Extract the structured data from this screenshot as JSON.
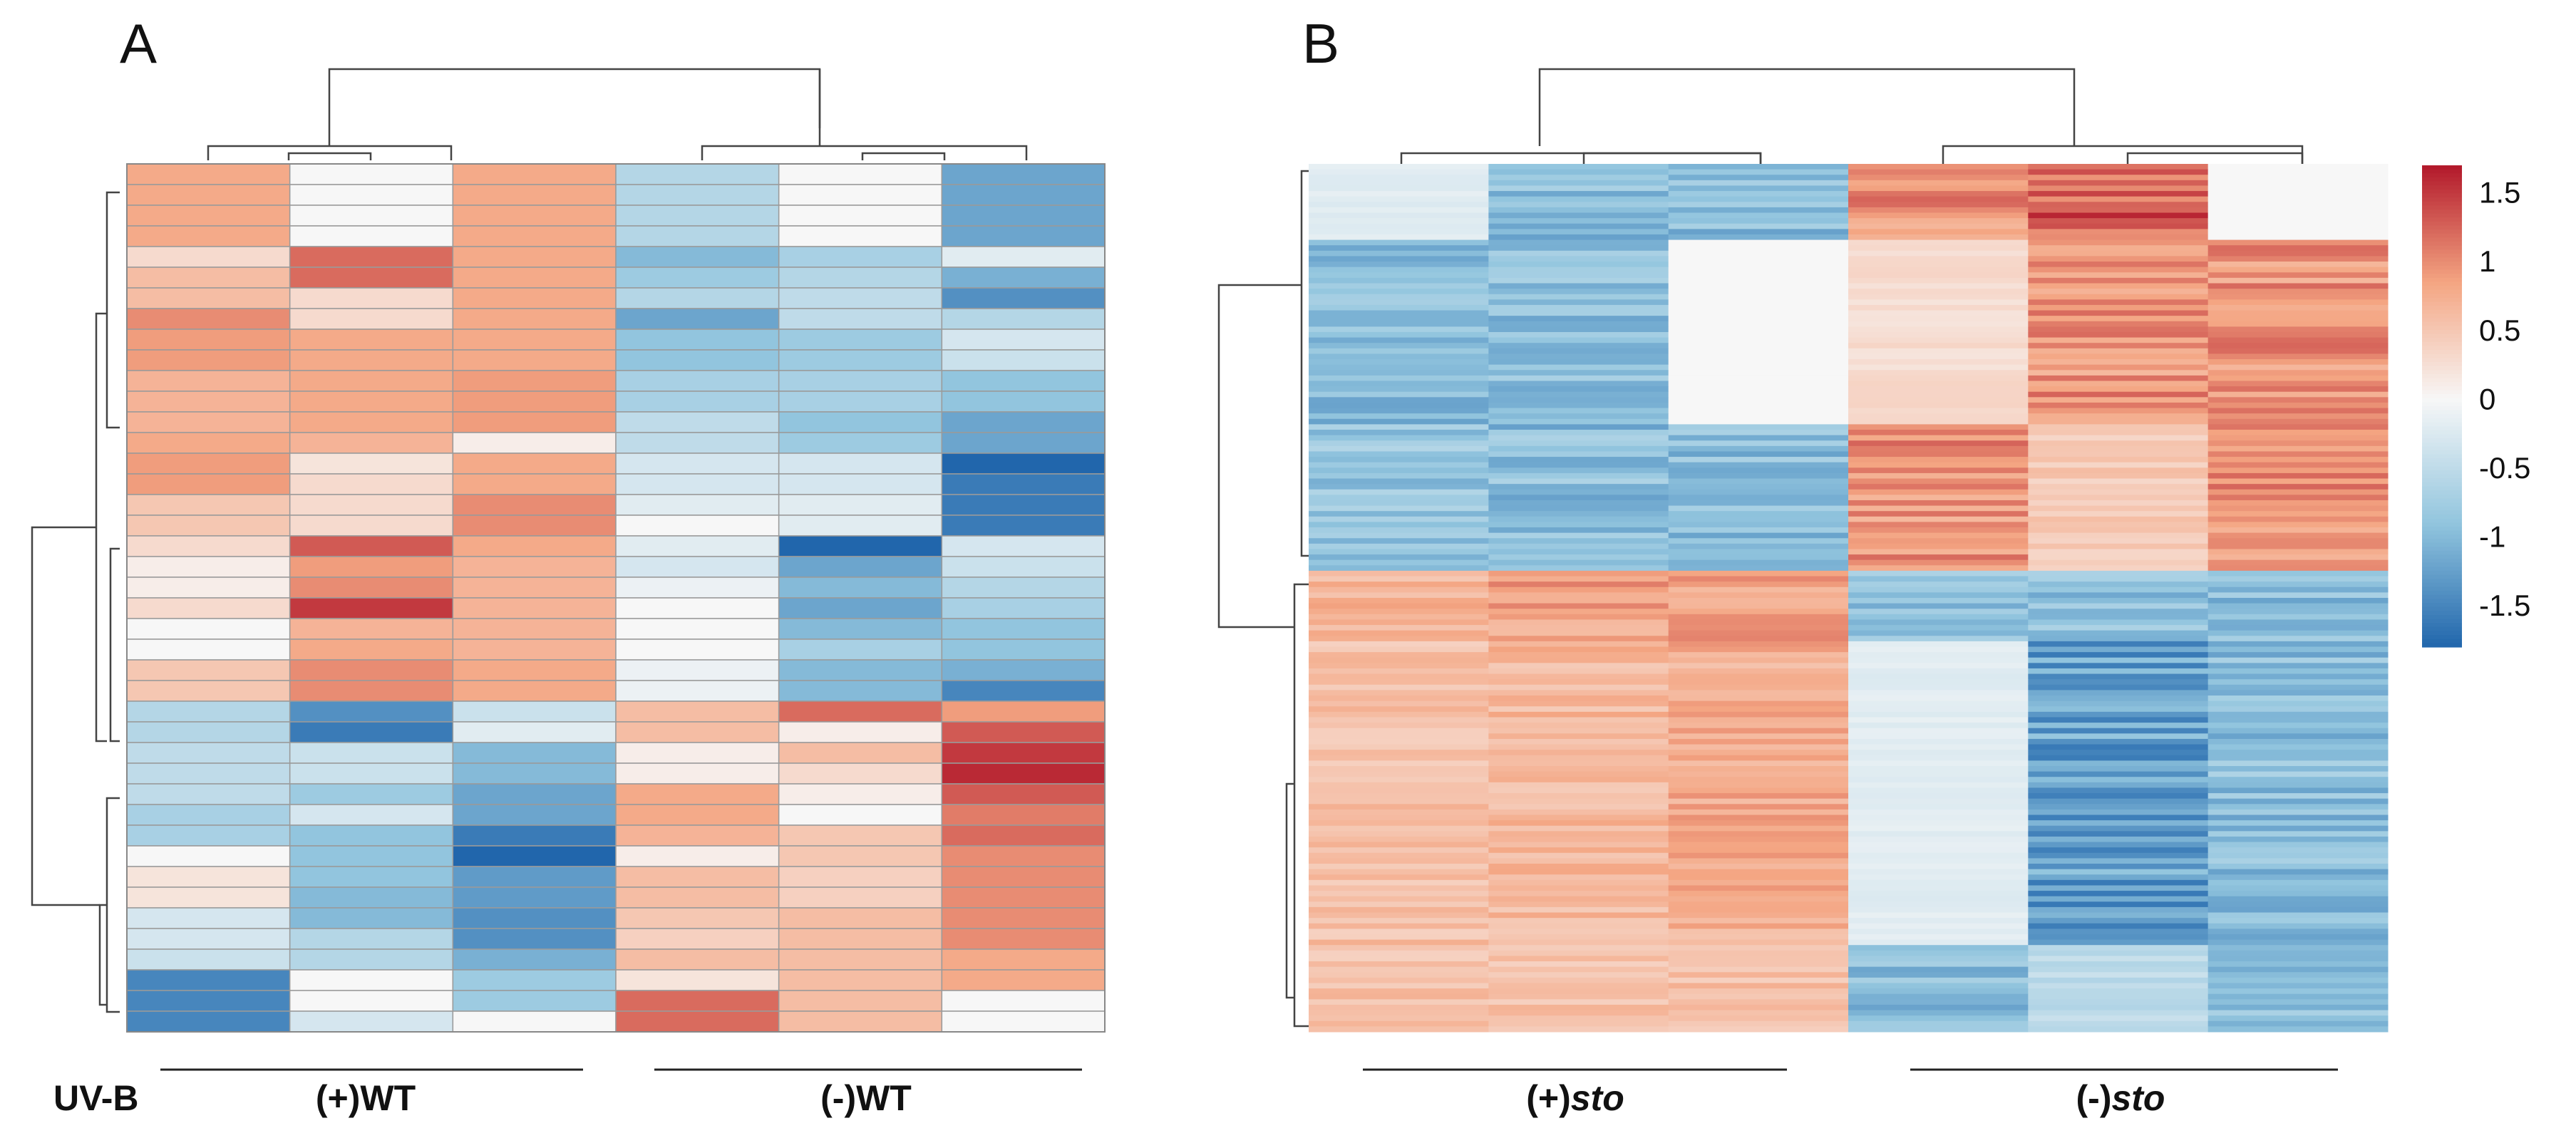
{
  "chart_data": [
    {
      "type": "heatmap",
      "panel_label": "A",
      "n_columns": 6,
      "n_rows": 42,
      "values": [
        [
          0.8,
          0.0,
          0.8,
          -0.6,
          0.0,
          -1.2
        ],
        [
          0.8,
          0.0,
          0.8,
          -0.6,
          0.0,
          -1.2
        ],
        [
          0.8,
          0.0,
          0.8,
          -0.6,
          0.0,
          -1.2
        ],
        [
          0.8,
          0.0,
          0.8,
          -0.6,
          0.0,
          -1.2
        ],
        [
          0.3,
          1.2,
          0.8,
          -1.0,
          -0.7,
          -0.2
        ],
        [
          0.6,
          1.2,
          0.8,
          -0.8,
          -0.6,
          -1.1
        ],
        [
          0.6,
          0.3,
          0.8,
          -0.6,
          -0.5,
          -1.4
        ],
        [
          1.0,
          0.3,
          0.8,
          -1.2,
          -0.5,
          -0.6
        ],
        [
          0.9,
          0.8,
          0.8,
          -0.9,
          -0.8,
          -0.3
        ],
        [
          0.9,
          0.8,
          0.8,
          -0.9,
          -0.8,
          -0.4
        ],
        [
          0.7,
          0.8,
          0.9,
          -0.7,
          -0.7,
          -0.9
        ],
        [
          0.7,
          0.8,
          0.9,
          -0.7,
          -0.7,
          -0.9
        ],
        [
          0.7,
          0.8,
          0.9,
          -0.5,
          -0.9,
          -1.2
        ],
        [
          0.8,
          0.7,
          0.1,
          -0.5,
          -0.8,
          -1.2
        ],
        [
          0.9,
          0.2,
          0.8,
          -0.3,
          -0.3,
          -1.8
        ],
        [
          0.9,
          0.3,
          0.8,
          -0.3,
          -0.3,
          -1.6
        ],
        [
          0.5,
          0.3,
          1.0,
          -0.2,
          -0.2,
          -1.6
        ],
        [
          0.5,
          0.3,
          1.0,
          0.0,
          -0.2,
          -1.6
        ],
        [
          0.3,
          1.3,
          0.8,
          -0.2,
          -1.8,
          -0.3
        ],
        [
          0.1,
          0.9,
          0.7,
          -0.3,
          -1.2,
          -0.4
        ],
        [
          0.1,
          1.0,
          0.7,
          -0.1,
          -1.0,
          -0.6
        ],
        [
          0.3,
          1.5,
          0.7,
          0.0,
          -1.2,
          -0.7
        ],
        [
          0.0,
          0.7,
          0.7,
          0.0,
          -1.0,
          -0.9
        ],
        [
          0.0,
          0.8,
          0.7,
          0.0,
          -0.7,
          -0.9
        ],
        [
          0.5,
          1.0,
          0.8,
          -0.1,
          -1.0,
          -1.1
        ],
        [
          0.5,
          1.0,
          0.8,
          -0.1,
          -1.0,
          -1.5
        ],
        [
          -0.6,
          -1.4,
          -0.4,
          0.6,
          1.2,
          0.9
        ],
        [
          -0.6,
          -1.6,
          -0.2,
          0.6,
          0.1,
          1.3
        ],
        [
          -0.5,
          -0.4,
          -1.0,
          0.1,
          0.6,
          1.5
        ],
        [
          -0.5,
          -0.4,
          -1.0,
          0.1,
          0.3,
          1.6
        ],
        [
          -0.5,
          -0.8,
          -1.2,
          0.8,
          0.1,
          1.3
        ],
        [
          -0.7,
          -0.3,
          -1.2,
          0.8,
          0.0,
          1.1
        ],
        [
          -0.7,
          -0.9,
          -1.6,
          0.7,
          0.5,
          1.2
        ],
        [
          0.0,
          -0.9,
          -1.8,
          0.1,
          0.5,
          1.0
        ],
        [
          0.2,
          -0.9,
          -1.3,
          0.6,
          0.4,
          1.0
        ],
        [
          0.2,
          -1.0,
          -1.3,
          0.6,
          0.4,
          1.0
        ],
        [
          -0.3,
          -1.0,
          -1.4,
          0.5,
          0.6,
          1.0
        ],
        [
          -0.3,
          -0.6,
          -1.4,
          0.4,
          0.6,
          1.0
        ],
        [
          -0.4,
          -0.6,
          -1.1,
          0.6,
          0.6,
          0.8
        ],
        [
          -1.5,
          0.0,
          -0.8,
          0.2,
          0.6,
          0.8
        ],
        [
          -1.5,
          0.0,
          -0.8,
          1.2,
          0.6,
          0.0
        ],
        [
          -1.5,
          -0.3,
          0.0,
          1.2,
          0.6,
          0.0
        ]
      ],
      "column_groups": [
        {
          "label": "(+)WT",
          "columns": [
            0,
            1,
            2
          ]
        },
        {
          "label": "(-)WT",
          "columns": [
            3,
            4,
            5
          ]
        }
      ],
      "row_annotation": "UV-B"
    },
    {
      "type": "heatmap",
      "panel_label": "B",
      "n_columns": 6,
      "n_rows": 160,
      "column_block_profiles": [
        {
          "row_fraction": [
            0.0,
            0.09
          ],
          "values": [
            -0.2,
            -1.0,
            -1.0,
            1.0,
            1.3,
            0.0
          ]
        },
        {
          "row_fraction": [
            0.09,
            0.3
          ],
          "values": [
            -1.0,
            -1.0,
            0.0,
            0.3,
            1.0,
            1.0
          ]
        },
        {
          "row_fraction": [
            0.3,
            0.47
          ],
          "values": [
            -0.9,
            -1.0,
            -1.0,
            1.0,
            0.5,
            1.0
          ]
        },
        {
          "row_fraction": [
            0.47,
            0.55
          ],
          "values": [
            0.7,
            0.9,
            0.9,
            -1.0,
            -1.0,
            -1.0
          ]
        },
        {
          "row_fraction": [
            0.55,
            0.9
          ],
          "values": [
            0.6,
            0.7,
            0.8,
            -0.2,
            -1.3,
            -1.0
          ]
        },
        {
          "row_fraction": [
            0.9,
            1.0
          ],
          "values": [
            0.6,
            0.6,
            0.6,
            -1.0,
            -0.5,
            -1.0
          ]
        }
      ],
      "column_groups": [
        {
          "label": "(+)sto",
          "columns": [
            0,
            1,
            2
          ]
        },
        {
          "label": "(-)sto",
          "columns": [
            3,
            4,
            5
          ]
        }
      ]
    }
  ],
  "colorbar": {
    "ticks": [
      "1.5",
      "1",
      "0.5",
      "0",
      "-0.5",
      "-1",
      "-1.5"
    ],
    "tick_values": [
      1.5,
      1,
      0.5,
      0,
      -0.5,
      -1,
      -1.5
    ],
    "range": [
      -1.8,
      1.7
    ],
    "colors": {
      "low": "#2166ac",
      "mid": "#f7f7f7",
      "high": "#b2182b"
    }
  },
  "labels": {
    "panel_a": "A",
    "panel_b": "B",
    "uvb": "UV-B",
    "wt_plus": "(+)WT",
    "wt_minus": "(-)WT",
    "sto_plus_prefix": "(+)",
    "sto_minus_prefix": "(-)",
    "sto_word": "sto"
  }
}
